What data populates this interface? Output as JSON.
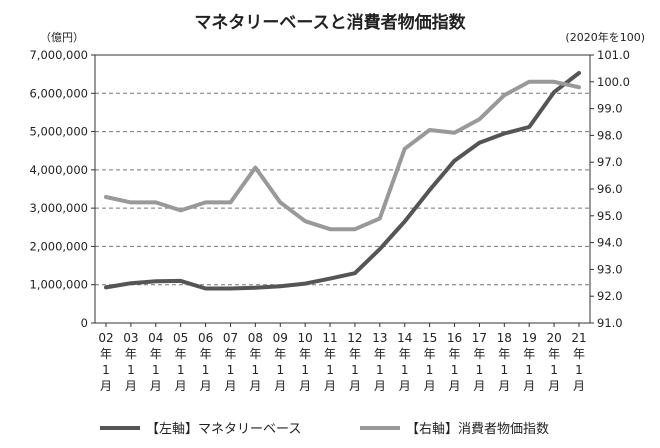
{
  "chart_data": {
    "type": "line",
    "title": "マネタリーベースと消費者物価指数",
    "left_unit": "（億円）",
    "right_unit": "(2020年を100)",
    "categories": [
      "02年1月",
      "03年1月",
      "04年1月",
      "05年1月",
      "06年1月",
      "07年1月",
      "08年1月",
      "09年1月",
      "10年1月",
      "11年1月",
      "12年1月",
      "13年1月",
      "14年1月",
      "15年1月",
      "16年1月",
      "17年1月",
      "18年1月",
      "19年1月",
      "20年1月",
      "21年1月"
    ],
    "x_tick_labels": [
      [
        "02",
        "年",
        "1",
        "月"
      ],
      [
        "03",
        "年",
        "1",
        "月"
      ],
      [
        "04",
        "年",
        "1",
        "月"
      ],
      [
        "05",
        "年",
        "1",
        "月"
      ],
      [
        "06",
        "年",
        "1",
        "月"
      ],
      [
        "07",
        "年",
        "1",
        "月"
      ],
      [
        "08",
        "年",
        "1",
        "月"
      ],
      [
        "09",
        "年",
        "1",
        "月"
      ],
      [
        "10",
        "年",
        "1",
        "月"
      ],
      [
        "11",
        "年",
        "1",
        "月"
      ],
      [
        "12",
        "年",
        "1",
        "月"
      ],
      [
        "13",
        "年",
        "1",
        "月"
      ],
      [
        "14",
        "年",
        "1",
        "月"
      ],
      [
        "15",
        "年",
        "1",
        "月"
      ],
      [
        "16",
        "年",
        "1",
        "月"
      ],
      [
        "17",
        "年",
        "1",
        "月"
      ],
      [
        "18",
        "年",
        "1",
        "月"
      ],
      [
        "19",
        "年",
        "1",
        "月"
      ],
      [
        "20",
        "年",
        "1",
        "月"
      ],
      [
        "21",
        "年",
        "1",
        "月"
      ]
    ],
    "y_left": {
      "range": [
        0,
        7000000
      ],
      "ticks": [
        0,
        1000000,
        2000000,
        3000000,
        4000000,
        5000000,
        6000000,
        7000000
      ],
      "tick_labels": [
        "0",
        "1,000,000",
        "2,000,000",
        "3,000,000",
        "4,000,000",
        "5,000,000",
        "6,000,000",
        "7,000,000"
      ]
    },
    "y_right": {
      "range": [
        91.0,
        101.0
      ],
      "ticks": [
        91.0,
        92.0,
        93.0,
        94.0,
        95.0,
        96.0,
        97.0,
        98.0,
        99.0,
        100.0,
        101.0
      ],
      "tick_labels": [
        "91.0",
        "92.0",
        "93.0",
        "94.0",
        "95.0",
        "96.0",
        "97.0",
        "98.0",
        "99.0",
        "100.0",
        "101.0"
      ]
    },
    "grid": "horizontal-dashed",
    "legend_position": "bottom",
    "series": [
      {
        "name": "【左軸】マネタリーベース",
        "axis": "left",
        "color": "#555555",
        "values": [
          930000,
          1040000,
          1090000,
          1100000,
          900000,
          900000,
          920000,
          960000,
          1030000,
          1160000,
          1300000,
          1930000,
          2650000,
          3470000,
          4240000,
          4710000,
          4950000,
          5120000,
          6030000,
          6530000
        ]
      },
      {
        "name": "【右軸】消費者物価指数",
        "axis": "right",
        "color": "#999999",
        "values": [
          95.7,
          95.5,
          95.5,
          95.2,
          95.5,
          95.5,
          96.8,
          95.5,
          94.8,
          94.5,
          94.5,
          94.9,
          97.5,
          98.2,
          98.1,
          98.6,
          99.5,
          100.0,
          100.0,
          99.8
        ]
      }
    ]
  }
}
